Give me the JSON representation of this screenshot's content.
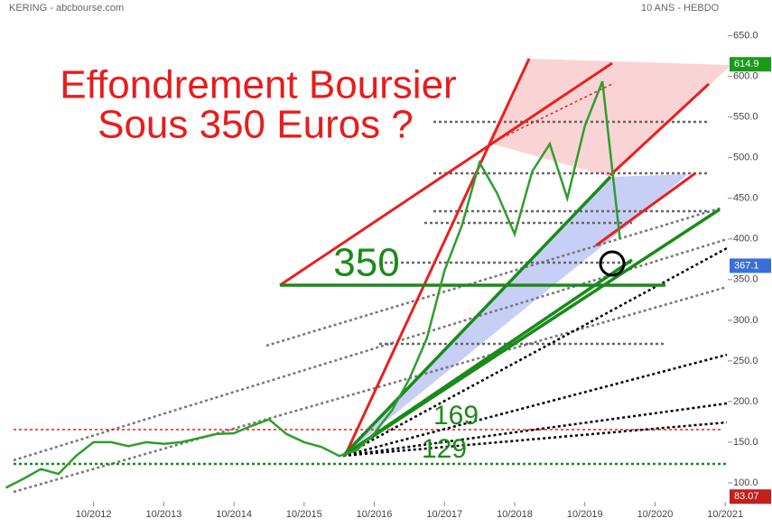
{
  "chart_data": {
    "type": "line",
    "title": "KERING - abcbourse.com",
    "subtitle": "10 ANS - HEBDO",
    "x": [
      "07/2011",
      "10/2011",
      "01/2012",
      "04/2012",
      "07/2012",
      "10/2012",
      "01/2013",
      "04/2013",
      "07/2013",
      "10/2013",
      "01/2014",
      "04/2014",
      "07/2014",
      "10/2014",
      "01/2015",
      "04/2015",
      "07/2015",
      "10/2015",
      "01/2016",
      "04/2016",
      "07/2016",
      "10/2016",
      "01/2017",
      "04/2017",
      "07/2017",
      "10/2017",
      "01/2018",
      "04/2018",
      "07/2018",
      "10/2018",
      "01/2019",
      "04/2019",
      "07/2019",
      "10/2019",
      "01/2020",
      "04/2020"
    ],
    "series": [
      {
        "name": "KERING",
        "color": "#2e9e2e",
        "values": [
          94,
          105,
          117,
          111,
          133,
          150,
          150,
          145,
          150,
          148,
          150,
          155,
          160,
          161,
          170,
          178,
          160,
          150,
          144,
          133,
          140,
          161,
          189,
          228,
          278,
          361,
          417,
          494,
          456,
          406,
          483,
          517,
          450,
          539,
          594,
          400
        ]
      }
    ],
    "xlim": [
      "06/2011",
      "06/2022"
    ],
    "xticks": [
      "10/2012",
      "10/2013",
      "10/2014",
      "10/2015",
      "10/2016",
      "10/2017",
      "10/2018",
      "10/2019",
      "10/2020",
      "10/2021"
    ],
    "ylim": [
      50,
      694
    ],
    "yticks": [
      {
        "value": 100,
        "label": "100.0"
      },
      {
        "value": 150,
        "label": "150.0"
      },
      {
        "value": 200,
        "label": "200.0"
      },
      {
        "value": 250,
        "label": "250.0"
      },
      {
        "value": 300,
        "label": "300.0"
      },
      {
        "value": 350,
        "label": "350.0"
      },
      {
        "value": 400,
        "label": "400.0"
      },
      {
        "value": 450,
        "label": "450.0"
      },
      {
        "value": 500,
        "label": "500.0"
      },
      {
        "value": 550,
        "label": "550.0"
      },
      {
        "value": 600,
        "label": "600.0"
      },
      {
        "value": 650,
        "label": "650.0"
      }
    ],
    "price_labels": [
      {
        "value": 614.9,
        "color": "#1a9a1a"
      },
      {
        "value": 367.1,
        "color": "#3b6fd8"
      },
      {
        "value": 83.07,
        "color": "#c41e1e"
      }
    ],
    "annotations": [
      "Effondrement Boursier",
      "Sous 350 Euros ?",
      "350",
      "169",
      "129"
    ]
  }
}
